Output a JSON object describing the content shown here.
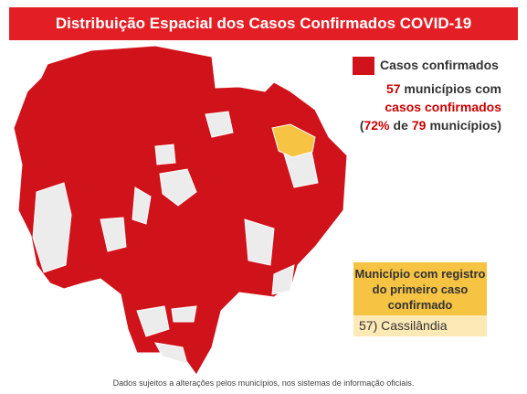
{
  "title": "Distribuição Espacial dos Casos Confirmados COVID-19",
  "legend": {
    "label": "Casos confirmados"
  },
  "summary": {
    "count": "57",
    "count_text": "municípios com",
    "highlight": "casos confirmados",
    "line3": [
      "(",
      "72%",
      "de",
      "79",
      "municípios)"
    ]
  },
  "first_case": {
    "header": "Município com registro do primeiro caso confirmado",
    "entry": "57) Cassilândia"
  },
  "footer": "Dados sujeitos a alterações pelos municípios, nos sistemas de informação oficiais."
}
